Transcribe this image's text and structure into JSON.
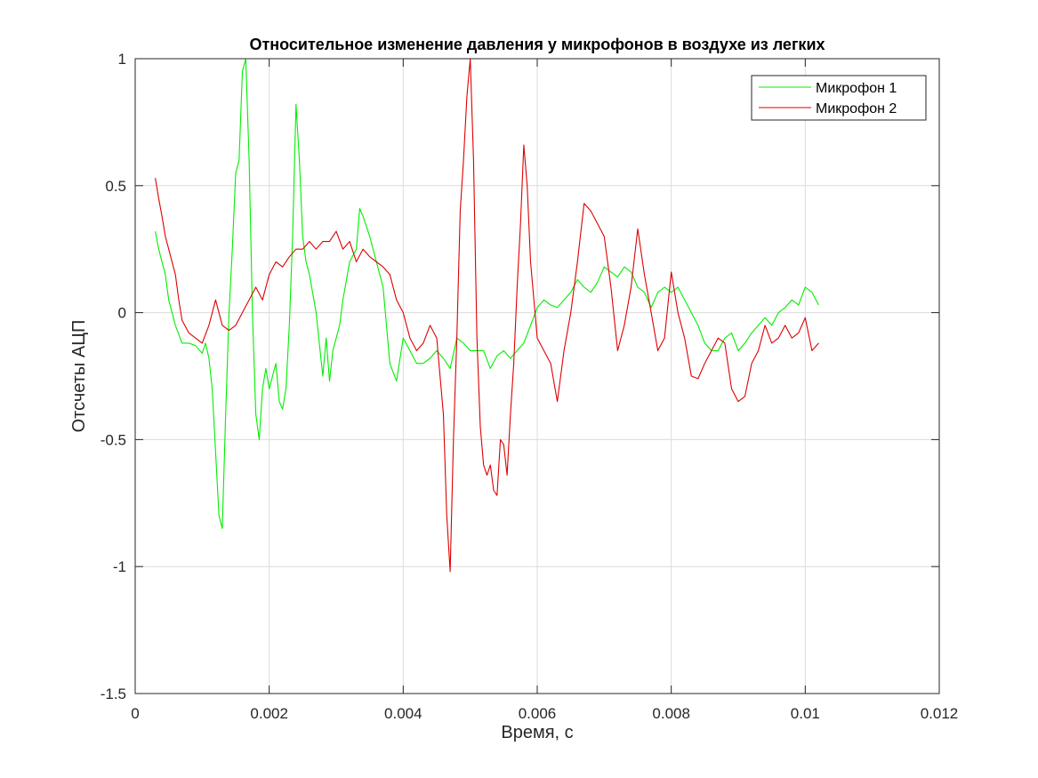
{
  "chart_data": {
    "type": "line",
    "title": "Относительное изменение давления у микрофонов в воздухе из легких",
    "xlabel": "Время, с",
    "ylabel": "Отсчеты АЦП",
    "xlim": [
      0,
      0.012
    ],
    "ylim": [
      -1.5,
      1
    ],
    "xticks": [
      0,
      0.002,
      0.004,
      0.006,
      0.008,
      0.01,
      0.012
    ],
    "xtick_labels": [
      "0",
      "0.002",
      "0.004",
      "0.006",
      "0.008",
      "0.01",
      "0.012"
    ],
    "yticks": [
      -1.5,
      -1,
      -0.5,
      0,
      0.5,
      1
    ],
    "ytick_labels": [
      "-1.5",
      "-1",
      "-0.5",
      "0",
      "0.5",
      "1"
    ],
    "grid": true,
    "legend_position": "top-right",
    "series": [
      {
        "name": "Микрофон 1",
        "color": "#00ee00",
        "x": [
          0.0003,
          0.00035,
          0.0004,
          0.00045,
          0.0005,
          0.0006,
          0.0007,
          0.0008,
          0.0009,
          0.001,
          0.00105,
          0.0011,
          0.00115,
          0.0012,
          0.00125,
          0.0013,
          0.00135,
          0.0014,
          0.00145,
          0.0015,
          0.00155,
          0.0016,
          0.00165,
          0.0017,
          0.00175,
          0.0018,
          0.00185,
          0.0019,
          0.00195,
          0.002,
          0.00205,
          0.0021,
          0.00215,
          0.0022,
          0.00225,
          0.0023,
          0.00235,
          0.0024,
          0.00245,
          0.0025,
          0.00255,
          0.0026,
          0.0027,
          0.0028,
          0.00285,
          0.0029,
          0.00295,
          0.003,
          0.00305,
          0.0031,
          0.0032,
          0.0033,
          0.00335,
          0.0034,
          0.0035,
          0.0036,
          0.0037,
          0.0038,
          0.0039,
          0.004,
          0.0041,
          0.0042,
          0.0043,
          0.0044,
          0.0045,
          0.0046,
          0.0047,
          0.0048,
          0.0049,
          0.005,
          0.0051,
          0.0052,
          0.0053,
          0.0054,
          0.0055,
          0.0056,
          0.0057,
          0.0058,
          0.0059,
          0.006,
          0.0061,
          0.0062,
          0.0063,
          0.0064,
          0.0065,
          0.0066,
          0.0067,
          0.0068,
          0.0069,
          0.007,
          0.0071,
          0.0072,
          0.0073,
          0.0074,
          0.0075,
          0.0076,
          0.0077,
          0.0078,
          0.0079,
          0.008,
          0.0081,
          0.0082,
          0.0083,
          0.0084,
          0.0085,
          0.0086,
          0.0087,
          0.0088,
          0.0089,
          0.009,
          0.0091,
          0.0092,
          0.0093,
          0.0094,
          0.0095,
          0.0096,
          0.0097,
          0.0098,
          0.0099,
          0.01,
          0.0101,
          0.0102
        ],
        "y": [
          0.32,
          0.25,
          0.2,
          0.15,
          0.05,
          -0.05,
          -0.12,
          -0.12,
          -0.13,
          -0.16,
          -0.12,
          -0.18,
          -0.3,
          -0.55,
          -0.8,
          -0.85,
          -0.4,
          0.0,
          0.25,
          0.55,
          0.6,
          0.95,
          1.0,
          0.6,
          0.0,
          -0.4,
          -0.5,
          -0.3,
          -0.22,
          -0.3,
          -0.25,
          -0.2,
          -0.35,
          -0.38,
          -0.3,
          -0.05,
          0.3,
          0.82,
          0.6,
          0.3,
          0.2,
          0.15,
          0.0,
          -0.25,
          -0.1,
          -0.27,
          -0.15,
          -0.1,
          -0.05,
          0.05,
          0.2,
          0.25,
          0.41,
          0.38,
          0.3,
          0.2,
          0.1,
          -0.2,
          -0.27,
          -0.1,
          -0.15,
          -0.2,
          -0.2,
          -0.18,
          -0.15,
          -0.18,
          -0.22,
          -0.1,
          -0.12,
          -0.15,
          -0.15,
          -0.15,
          -0.22,
          -0.17,
          -0.15,
          -0.18,
          -0.15,
          -0.12,
          -0.05,
          0.02,
          0.05,
          0.03,
          0.02,
          0.05,
          0.08,
          0.13,
          0.1,
          0.08,
          0.12,
          0.18,
          0.16,
          0.14,
          0.18,
          0.16,
          0.1,
          0.08,
          0.02,
          0.08,
          0.1,
          0.08,
          0.1,
          0.05,
          0.0,
          -0.05,
          -0.12,
          -0.15,
          -0.15,
          -0.1,
          -0.08,
          -0.15,
          -0.12,
          -0.08,
          -0.05,
          -0.02,
          -0.05,
          0.0,
          0.02,
          0.05,
          0.03,
          0.1,
          0.08,
          0.03
        ]
      },
      {
        "name": "Микрофон 2",
        "color": "#dd0000",
        "x": [
          0.0003,
          0.00035,
          0.0004,
          0.00045,
          0.0005,
          0.00055,
          0.0006,
          0.00065,
          0.0007,
          0.0008,
          0.0009,
          0.001,
          0.0011,
          0.0012,
          0.0013,
          0.0014,
          0.0015,
          0.0016,
          0.0017,
          0.0018,
          0.0019,
          0.002,
          0.0021,
          0.0022,
          0.0023,
          0.0024,
          0.0025,
          0.0026,
          0.0027,
          0.0028,
          0.0029,
          0.003,
          0.0031,
          0.0032,
          0.0033,
          0.0034,
          0.0035,
          0.0036,
          0.0037,
          0.0038,
          0.0039,
          0.004,
          0.0041,
          0.0042,
          0.0043,
          0.0044,
          0.0045,
          0.0046,
          0.00465,
          0.0047,
          0.00475,
          0.0048,
          0.00485,
          0.0049,
          0.00495,
          0.005,
          0.00505,
          0.0051,
          0.00515,
          0.0052,
          0.00525,
          0.0053,
          0.00535,
          0.0054,
          0.00545,
          0.0055,
          0.00555,
          0.0056,
          0.00565,
          0.0057,
          0.00575,
          0.0058,
          0.00585,
          0.0059,
          0.006,
          0.0061,
          0.0062,
          0.0063,
          0.0064,
          0.0065,
          0.0066,
          0.0067,
          0.0068,
          0.0069,
          0.007,
          0.0071,
          0.0072,
          0.0073,
          0.0074,
          0.0075,
          0.0076,
          0.0077,
          0.0078,
          0.0079,
          0.008,
          0.0081,
          0.0082,
          0.0083,
          0.0084,
          0.0085,
          0.0086,
          0.0087,
          0.0088,
          0.0089,
          0.009,
          0.0091,
          0.0092,
          0.0093,
          0.0094,
          0.0095,
          0.0096,
          0.0097,
          0.0098,
          0.0099,
          0.01,
          0.0101,
          0.0102
        ],
        "y": [
          0.53,
          0.45,
          0.38,
          0.3,
          0.25,
          0.2,
          0.15,
          0.05,
          -0.03,
          -0.08,
          -0.1,
          -0.12,
          -0.05,
          0.05,
          -0.05,
          -0.07,
          -0.05,
          0.0,
          0.05,
          0.1,
          0.05,
          0.15,
          0.2,
          0.18,
          0.22,
          0.25,
          0.25,
          0.28,
          0.25,
          0.28,
          0.28,
          0.32,
          0.25,
          0.28,
          0.2,
          0.25,
          0.22,
          0.2,
          0.18,
          0.15,
          0.05,
          0.0,
          -0.1,
          -0.15,
          -0.12,
          -0.05,
          -0.1,
          -0.4,
          -0.8,
          -1.02,
          -0.5,
          -0.1,
          0.4,
          0.6,
          0.85,
          1.0,
          0.6,
          -0.1,
          -0.45,
          -0.6,
          -0.64,
          -0.6,
          -0.7,
          -0.72,
          -0.5,
          -0.52,
          -0.64,
          -0.4,
          -0.2,
          0.1,
          0.35,
          0.66,
          0.5,
          0.2,
          -0.1,
          -0.15,
          -0.2,
          -0.35,
          -0.15,
          0.0,
          0.2,
          0.43,
          0.4,
          0.35,
          0.3,
          0.1,
          -0.15,
          -0.05,
          0.1,
          0.33,
          0.15,
          0.0,
          -0.15,
          -0.1,
          0.16,
          0.0,
          -0.1,
          -0.25,
          -0.26,
          -0.2,
          -0.15,
          -0.1,
          -0.12,
          -0.3,
          -0.35,
          -0.33,
          -0.2,
          -0.15,
          -0.05,
          -0.12,
          -0.1,
          -0.05,
          -0.1,
          -0.08,
          -0.02,
          -0.15,
          -0.12
        ]
      }
    ]
  }
}
